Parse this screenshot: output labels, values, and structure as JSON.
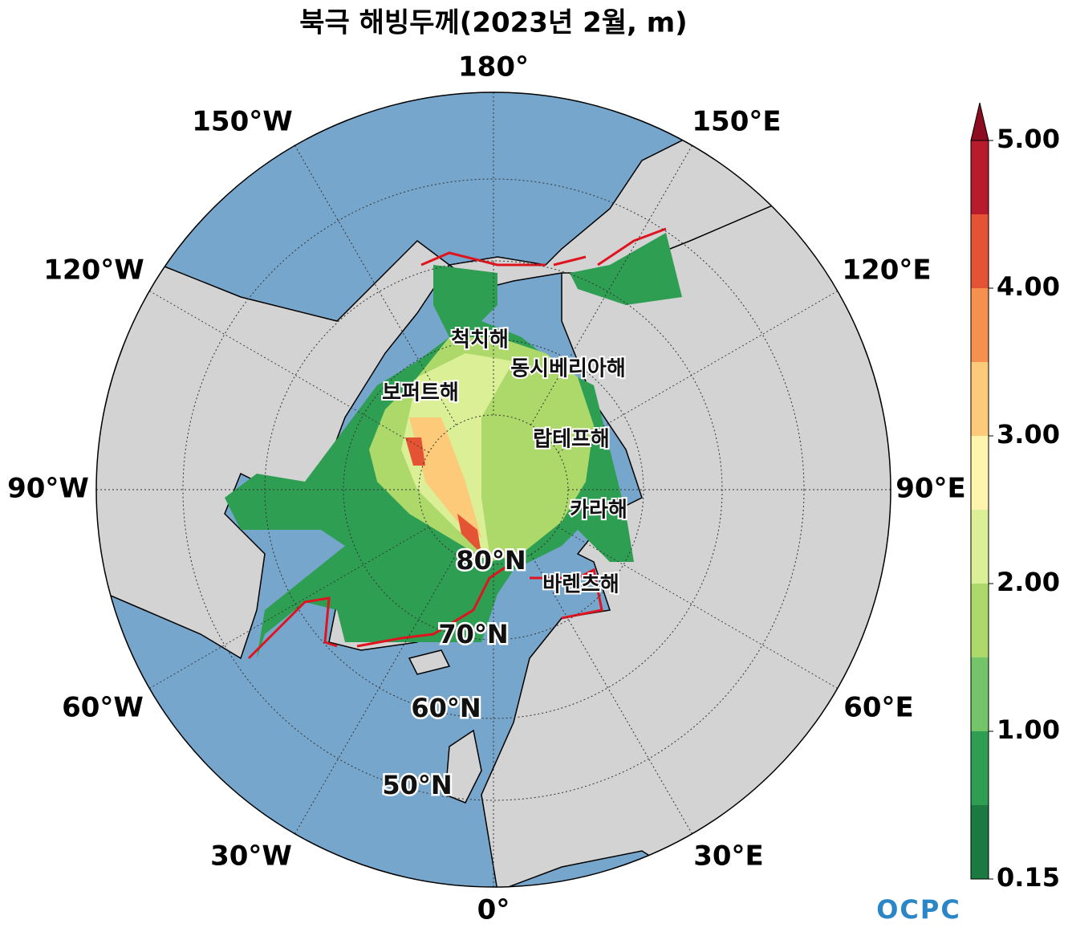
{
  "title": "북극 해빙두께(2023년 2월, m)",
  "longitude_labels": [
    "180°",
    "150°E",
    "120°E",
    "90°E",
    "60°E",
    "30°E",
    "0°",
    "30°W",
    "60°W",
    "90°W",
    "120°W",
    "150°W"
  ],
  "latitude_labels": [
    "80°N",
    "70°N",
    "60°N",
    "50°N"
  ],
  "sea_labels": [
    "척치해",
    "동시베리아해",
    "보퍼트해",
    "랍테프해",
    "카라해",
    "바렌츠해"
  ],
  "colorbar": {
    "levels": [
      0.15,
      0.5,
      1,
      1.5,
      2,
      2.5,
      3,
      3.5,
      4,
      4.5,
      5
    ],
    "colors": [
      "#1a7a40",
      "#2d9e52",
      "#74c46a",
      "#acd96a",
      "#dbef96",
      "#fff4ae",
      "#fdca79",
      "#f5904e",
      "#e35334",
      "#b81b2b"
    ],
    "extend_color": "#8e0c22",
    "ticks": [
      0.15,
      {
        "value": 1,
        "label": "1.00"
      },
      {
        "value": 2,
        "label": "2.00"
      },
      {
        "value": 3,
        "label": "3.00"
      },
      {
        "value": 4,
        "label": "4.00"
      },
      {
        "value": 5,
        "label": "5.00"
      }
    ]
  },
  "logo": "OCPC"
}
